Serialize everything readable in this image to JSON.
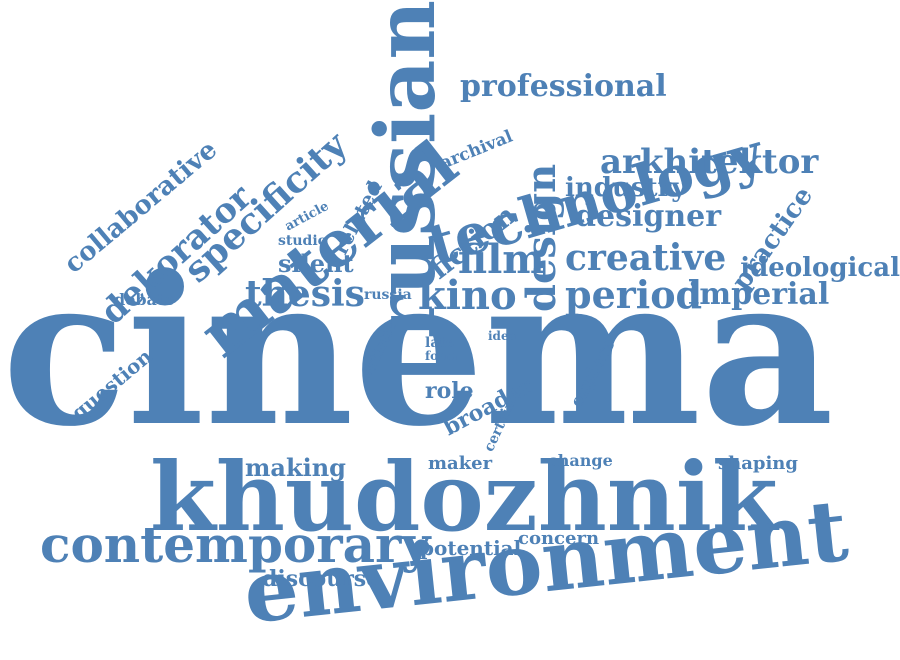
{
  "colors": {
    "word": "#4e81b6",
    "background": "#ffffff"
  },
  "words": [
    {
      "text": "cinema",
      "orient": "h"
    },
    {
      "text": "khudozhnik",
      "orient": "h"
    },
    {
      "text": "environment",
      "orient": "tilt"
    },
    {
      "text": "russian",
      "orient": "v"
    },
    {
      "text": "technology",
      "orient": "tilt"
    },
    {
      "text": "material",
      "orient": "tilt"
    },
    {
      "text": "contemporary",
      "orient": "h"
    },
    {
      "text": "specificity",
      "orient": "tilt"
    },
    {
      "text": "dekorator",
      "orient": "tilt"
    },
    {
      "text": "collaborative",
      "orient": "tilt"
    },
    {
      "text": "professional",
      "orient": "h"
    },
    {
      "text": "arkhitektor",
      "orient": "h"
    },
    {
      "text": "industry",
      "orient": "h"
    },
    {
      "text": "designer",
      "orient": "h"
    },
    {
      "text": "creative",
      "orient": "h"
    },
    {
      "text": "design",
      "orient": "v"
    },
    {
      "text": "practice",
      "orient": "tilt"
    },
    {
      "text": "ideological",
      "orient": "h"
    },
    {
      "text": "period",
      "orient": "h"
    },
    {
      "text": "imperial",
      "orient": "h"
    },
    {
      "text": "kino",
      "orient": "h"
    },
    {
      "text": "film",
      "orient": "h"
    },
    {
      "text": "fiction",
      "orient": "tilt"
    },
    {
      "text": "thesis",
      "orient": "h"
    },
    {
      "text": "silent",
      "orient": "h"
    },
    {
      "text": "studio",
      "orient": "h"
    },
    {
      "text": "article",
      "orient": "tilt"
    },
    {
      "text": "related",
      "orient": "tilt"
    },
    {
      "text": "archival",
      "orient": "tilt"
    },
    {
      "text": "debate",
      "orient": "h"
    },
    {
      "text": "russia",
      "orient": "h"
    },
    {
      "text": "question",
      "orient": "tilt"
    },
    {
      "text": "artistic",
      "orient": "tilt"
    },
    {
      "text": "late",
      "orient": "h"
    },
    {
      "text": "form",
      "orient": "h"
    },
    {
      "text": "idea",
      "orient": "h"
    },
    {
      "text": "explore",
      "orient": "tilt"
    },
    {
      "text": "role",
      "orient": "h"
    },
    {
      "text": "broader",
      "orient": "tilt"
    },
    {
      "text": "certain",
      "orient": "tilt"
    },
    {
      "text": "making",
      "orient": "h"
    },
    {
      "text": "maker",
      "orient": "h"
    },
    {
      "text": "change",
      "orient": "h"
    },
    {
      "text": "shaping",
      "orient": "h"
    },
    {
      "text": "potential",
      "orient": "h"
    },
    {
      "text": "concern",
      "orient": "h"
    },
    {
      "text": "discourse",
      "orient": "h"
    }
  ]
}
